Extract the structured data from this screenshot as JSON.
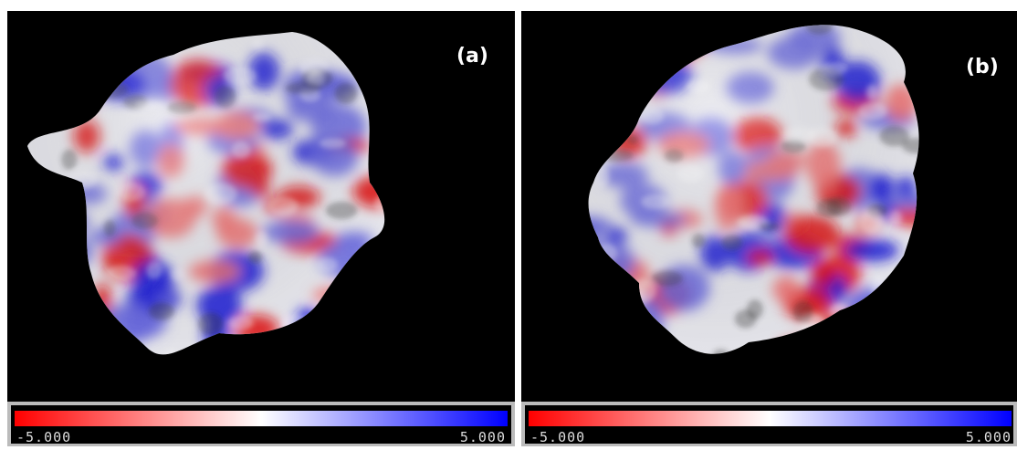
{
  "panels": [
    {
      "label": "(a)",
      "colorbar": {
        "min_label": "-5.000",
        "max_label": "5.000"
      }
    },
    {
      "label": "(b)",
      "colorbar": {
        "min_label": "-5.000",
        "max_label": "5.000"
      }
    }
  ]
}
